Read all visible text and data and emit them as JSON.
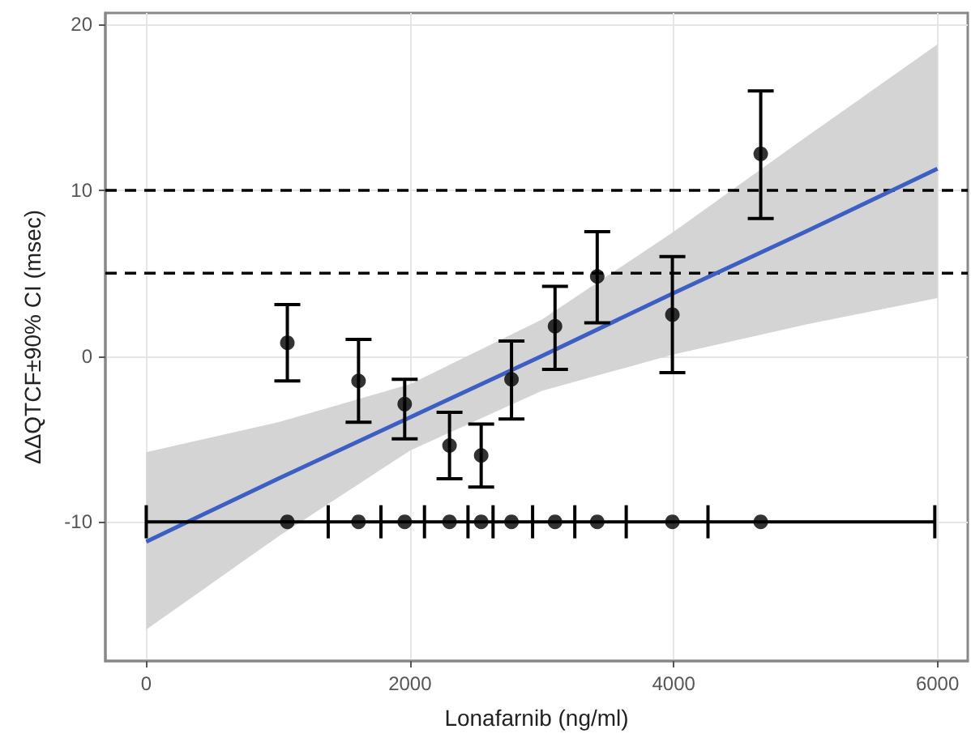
{
  "chart_data": {
    "type": "scatter",
    "xlabel": "Lonafarnib (ng/ml)",
    "ylabel": "ΔΔQTCF±90% CI (msec)",
    "xlim": [
      -310,
      6230
    ],
    "ylim": [
      -18.4,
      20.7
    ],
    "xticks": [
      0,
      2000,
      4000,
      6000
    ],
    "yticks": [
      -10,
      0,
      10,
      20
    ],
    "grid": true,
    "series": [
      {
        "type": "line",
        "color": "#3d5fc4",
        "marker": "none",
        "x": [
          0,
          1000,
          2000,
          3000,
          4000,
          5000,
          6000
        ],
        "values": [
          -11.2,
          -7.4,
          -3.7,
          0.0,
          3.8,
          7.5,
          11.3
        ],
        "lower": [
          -16.5,
          -10.9,
          -5.7,
          -2.1,
          0.1,
          1.9,
          3.5
        ],
        "upper": [
          -5.8,
          -4.0,
          -1.7,
          2.2,
          7.5,
          13.2,
          18.8
        ]
      },
      {
        "color": "#000000",
        "marker": "circle",
        "x": [
          1070,
          1610,
          1960,
          2300,
          2540,
          2770,
          3100,
          3420,
          3990,
          4660
        ],
        "values": [
          0.8,
          -1.5,
          -2.9,
          -5.4,
          -6.0,
          -1.4,
          1.8,
          4.8,
          2.5,
          12.2
        ],
        "errors": [
          [
            -1.5,
            3.1
          ],
          [
            -4.0,
            1.0
          ],
          [
            -5.0,
            -1.4
          ],
          [
            -7.4,
            -3.4
          ],
          [
            -7.9,
            -4.1
          ],
          [
            -3.8,
            0.9
          ],
          [
            -0.8,
            4.2
          ],
          [
            2.0,
            7.5
          ],
          [
            -1.0,
            6.0
          ],
          [
            8.3,
            16.0
          ]
        ]
      },
      {
        "type": "line",
        "color": "#000000",
        "marker": "none",
        "x": [
          0,
          1380,
          1780,
          2110,
          2440,
          2630,
          2930,
          3250,
          3640,
          4260,
          5980
        ],
        "values": [
          -10,
          -10,
          -10,
          -10,
          -10,
          -10,
          -10,
          -10,
          -10,
          -10,
          -10
        ],
        "errors": [
          1,
          1,
          1,
          1,
          1,
          1,
          1,
          1,
          1,
          1,
          1
        ]
      },
      {
        "color": "#000000",
        "marker": "circle",
        "x": [
          1070,
          1610,
          1960,
          2300,
          2540,
          2770,
          3100,
          3420,
          3990,
          4660
        ],
        "values": [
          -10,
          -10,
          -10,
          -10,
          -10,
          -10,
          -10,
          -10,
          -10,
          -10
        ]
      }
    ],
    "ref_lines": [
      {
        "axis": "y",
        "value": 10,
        "color": "#000000",
        "line_style": "dashed"
      },
      {
        "axis": "y",
        "value": 5,
        "color": "#000000",
        "line_style": "dashed"
      }
    ]
  }
}
